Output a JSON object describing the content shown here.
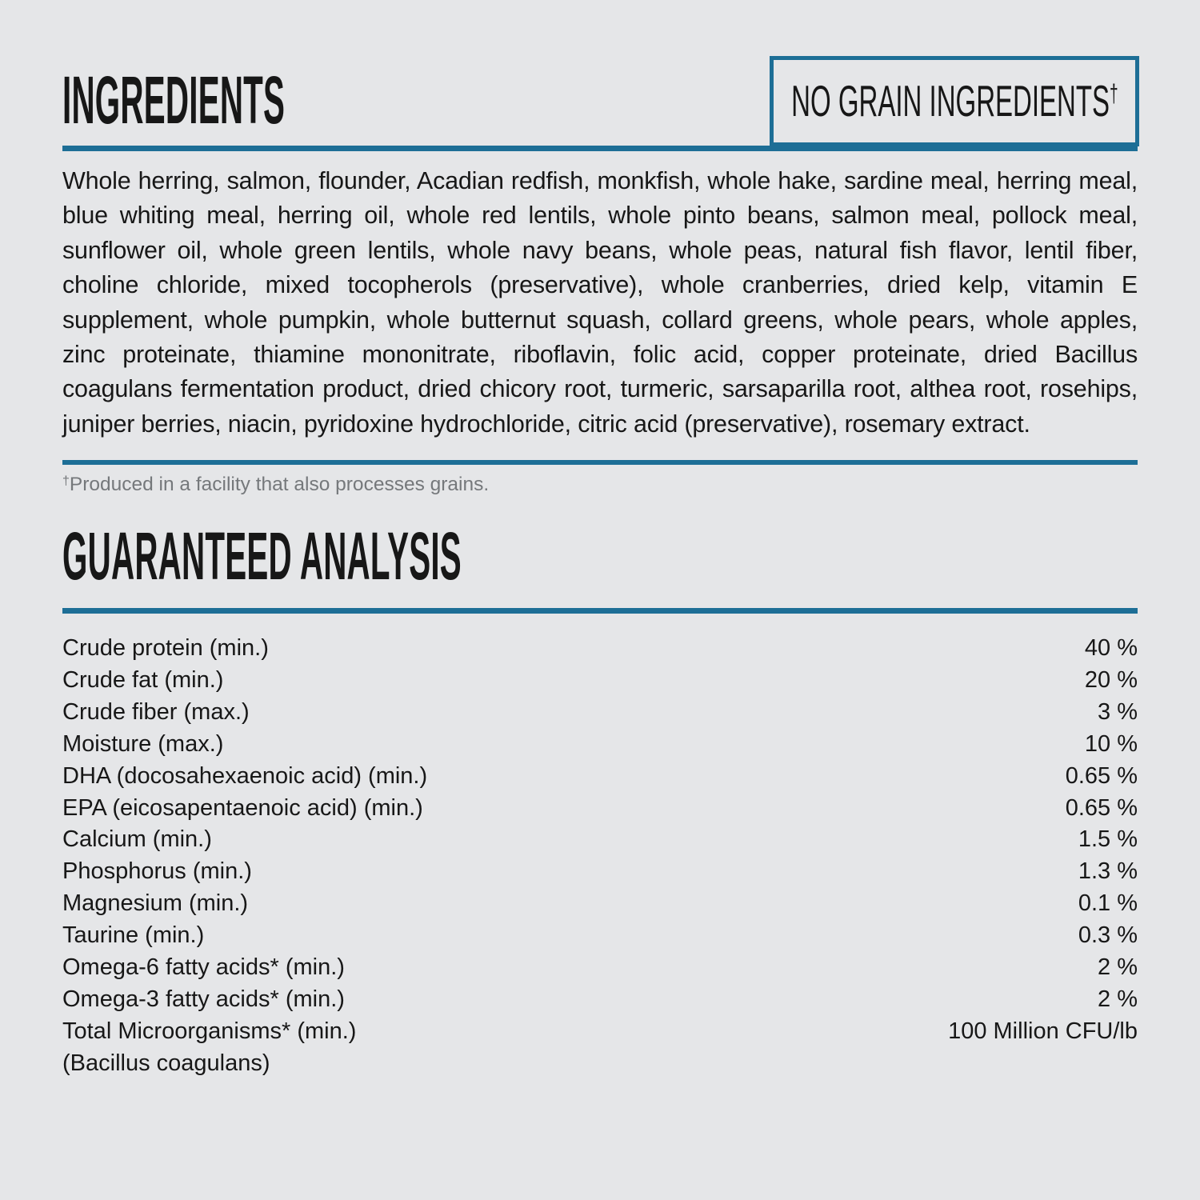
{
  "page": {
    "background_color": "#e5e6e8",
    "accent_color": "#1d6e96",
    "text_color": "#171717",
    "muted_color": "#75787b"
  },
  "ingredients_section": {
    "title": "INGREDIENTS",
    "no_grain_badge": {
      "label": "NO GRAIN INGREDIENTS",
      "superscript": "†"
    },
    "ingredients_text": "Whole herring, salmon, flounder, Acadian redfish, monkfish, whole hake, sardine meal, herring meal, blue whiting meal, herring oil, whole red lentils, whole pinto beans, salmon meal, pollock meal, sunflower oil, whole green lentils, whole navy beans, whole peas, natural fish flavor, lentil fiber, choline chloride, mixed tocopherols (preservative), whole cranberries, dried kelp, vitamin E supplement, whole pumpkin, whole butternut squash, collard greens, whole pears, whole apples, zinc proteinate, thiamine mononitrate, riboflavin, folic acid, copper proteinate, dried Bacillus coagulans fermentation product, dried chicory root, turmeric, sarsaparilla root, althea root, rosehips, juniper berries, niacin, pyridoxine hydrochloride, citric acid (preservative), rosemary extract.",
    "footnote": {
      "superscript": "†",
      "text": "Produced in a facility that also processes grains."
    }
  },
  "guaranteed_analysis_section": {
    "title": "GUARANTEED ANALYSIS",
    "rows": [
      {
        "label": "Crude protein (min.)",
        "value": "40 %"
      },
      {
        "label": "Crude fat (min.)",
        "value": "20 %"
      },
      {
        "label": "Crude fiber (max.)",
        "value": "3 %"
      },
      {
        "label": "Moisture (max.)",
        "value": "10 %"
      },
      {
        "label": "DHA (docosahexaenoic acid) (min.)",
        "value": "0.65 %"
      },
      {
        "label": "EPA (eicosapentaenoic acid) (min.)",
        "value": "0.65 %"
      },
      {
        "label": "Calcium (min.)",
        "value": "1.5 %"
      },
      {
        "label": "Phosphorus (min.)",
        "value": "1.3 %"
      },
      {
        "label": "Magnesium (min.)",
        "value": "0.1 %"
      },
      {
        "label": "Taurine (min.)",
        "value": "0.3 %"
      },
      {
        "label": "Omega-6 fatty acids* (min.)",
        "value": "2 %"
      },
      {
        "label": "Omega-3 fatty acids* (min.)",
        "value": "2 %"
      },
      {
        "label": "Total Microorganisms* (min.)",
        "value": "100 Million CFU/lb"
      },
      {
        "label": "(Bacillus coagulans)",
        "value": ""
      }
    ]
  }
}
